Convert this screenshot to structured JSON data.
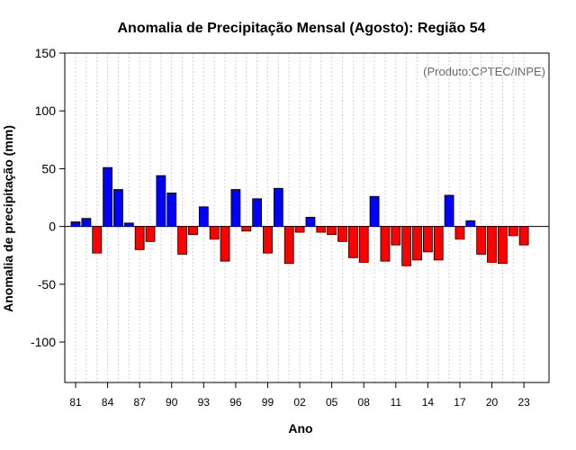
{
  "chart_data": {
    "type": "bar",
    "title": "Anomalia de Precipitação Mensal (Agosto): Região 54",
    "xlabel": "Ano",
    "ylabel": "Anomalia de precipitação (mm)",
    "annotation": "(Produto:CPTEC/INPE)",
    "ylim": [
      -135,
      150
    ],
    "yticks": [
      -100,
      -50,
      0,
      50,
      100,
      150
    ],
    "xtick_labels": [
      "81",
      "84",
      "87",
      "90",
      "93",
      "96",
      "99",
      "02",
      "05",
      "08",
      "11",
      "14",
      "17",
      "20",
      "23"
    ],
    "categories": [
      "1981",
      "1982",
      "1983",
      "1984",
      "1985",
      "1986",
      "1987",
      "1988",
      "1989",
      "1990",
      "1991",
      "1992",
      "1993",
      "1994",
      "1995",
      "1996",
      "1997",
      "1998",
      "1999",
      "2000",
      "2001",
      "2002",
      "2003",
      "2004",
      "2005",
      "2006",
      "2007",
      "2008",
      "2009",
      "2010",
      "2011",
      "2012",
      "2013",
      "2014",
      "2015",
      "2016",
      "2017",
      "2018",
      "2019",
      "2020",
      "2021",
      "2022",
      "2023"
    ],
    "values": [
      4,
      7,
      -23,
      51,
      32,
      3,
      -20,
      -13,
      44,
      29,
      -24,
      -7,
      17,
      -11,
      -30,
      32,
      -4,
      24,
      -23,
      33,
      -32,
      -5,
      8,
      -5,
      -7,
      -13,
      -27,
      -31,
      26,
      -30,
      -16,
      -34,
      -29,
      -22,
      -29,
      27,
      -11,
      5,
      -24,
      -31,
      -32,
      -8,
      -16
    ],
    "colors": {
      "positive": "#0000ff",
      "negative": "#ff0000",
      "grid": "#d3d3d3"
    },
    "grid": true,
    "legend": "none"
  }
}
